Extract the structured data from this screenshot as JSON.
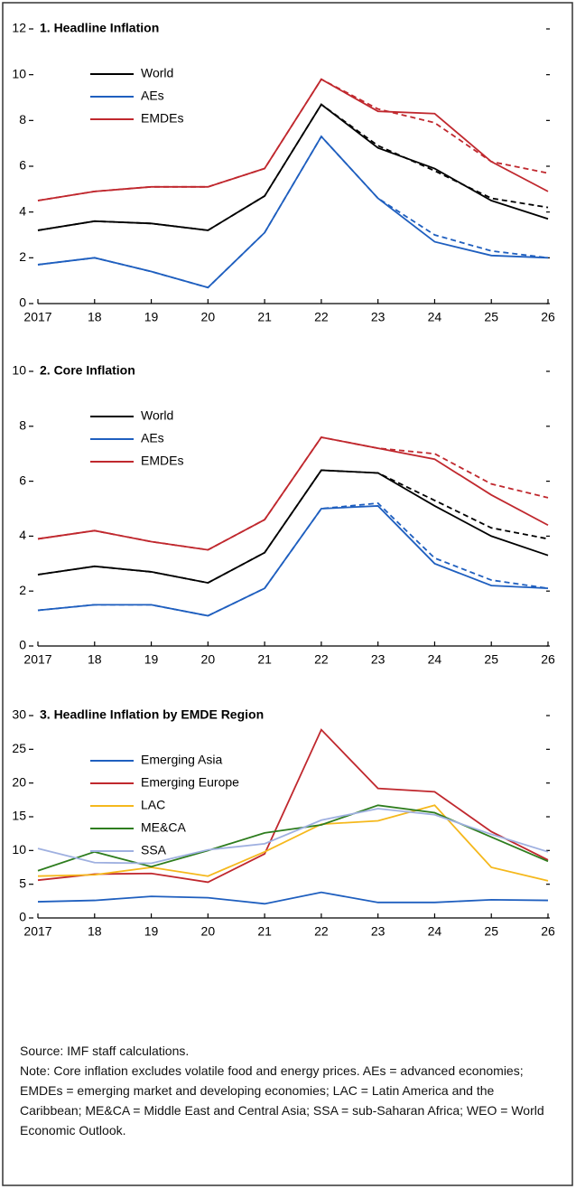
{
  "chart_data": [
    {
      "type": "line",
      "title": "1. Headline Inflation",
      "categories": [
        "2017",
        "18",
        "19",
        "20",
        "21",
        "22",
        "23",
        "24",
        "25",
        "26"
      ],
      "ylim": [
        0,
        12
      ],
      "yticks": [
        0,
        2,
        4,
        6,
        8,
        10,
        12
      ],
      "series": [
        {
          "name": "World",
          "color": "#000000",
          "values": [
            3.2,
            3.6,
            3.5,
            3.2,
            4.7,
            8.7,
            6.8,
            5.9,
            4.5,
            3.7
          ]
        },
        {
          "name": "AEs",
          "color": "#1f5fbf",
          "values": [
            1.7,
            2.0,
            1.4,
            0.7,
            3.1,
            7.3,
            4.6,
            2.7,
            2.1,
            2.0
          ]
        },
        {
          "name": "EMDEs",
          "color": "#c0282e",
          "values": [
            4.5,
            4.9,
            5.1,
            5.1,
            5.9,
            9.8,
            8.4,
            8.3,
            6.2,
            4.9
          ]
        },
        {
          "color": "#000000",
          "dashed": true,
          "values": [
            3.2,
            3.6,
            3.5,
            3.2,
            4.7,
            8.7,
            6.9,
            5.8,
            4.6,
            4.2
          ]
        },
        {
          "color": "#1f5fbf",
          "dashed": true,
          "values": [
            1.7,
            2.0,
            1.4,
            0.7,
            3.1,
            7.3,
            4.6,
            3.0,
            2.3,
            2.0
          ]
        },
        {
          "color": "#c0282e",
          "dashed": true,
          "values": [
            4.5,
            4.9,
            5.1,
            5.1,
            5.9,
            9.8,
            8.5,
            7.9,
            6.2,
            5.7
          ]
        }
      ]
    },
    {
      "type": "line",
      "title": "2. Core Inflation",
      "categories": [
        "2017",
        "18",
        "19",
        "20",
        "21",
        "22",
        "23",
        "24",
        "25",
        "26"
      ],
      "ylim": [
        0,
        10
      ],
      "yticks": [
        0,
        2,
        4,
        6,
        8,
        10
      ],
      "series": [
        {
          "name": "World",
          "color": "#000000",
          "values": [
            2.6,
            2.9,
            2.7,
            2.3,
            3.4,
            6.4,
            6.3,
            5.1,
            4.0,
            3.3
          ]
        },
        {
          "name": "AEs",
          "color": "#1f5fbf",
          "values": [
            1.3,
            1.5,
            1.5,
            1.1,
            2.1,
            5.0,
            5.1,
            3.0,
            2.2,
            2.1
          ]
        },
        {
          "name": "EMDEs",
          "color": "#c0282e",
          "values": [
            3.9,
            4.2,
            3.8,
            3.5,
            4.6,
            7.6,
            7.2,
            6.8,
            5.5,
            4.4
          ]
        },
        {
          "color": "#000000",
          "dashed": true,
          "values": [
            2.6,
            2.9,
            2.7,
            2.3,
            3.4,
            6.4,
            6.3,
            5.3,
            4.3,
            3.9
          ]
        },
        {
          "color": "#1f5fbf",
          "dashed": true,
          "values": [
            1.3,
            1.5,
            1.5,
            1.1,
            2.1,
            5.0,
            5.2,
            3.2,
            2.4,
            2.1
          ]
        },
        {
          "color": "#c0282e",
          "dashed": true,
          "values": [
            3.9,
            4.2,
            3.8,
            3.5,
            4.6,
            7.6,
            7.2,
            7.0,
            5.9,
            5.4
          ]
        }
      ]
    },
    {
      "type": "line",
      "title": "3. Headline Inflation by EMDE Region",
      "categories": [
        "2017",
        "18",
        "19",
        "20",
        "21",
        "22",
        "23",
        "24",
        "25",
        "26"
      ],
      "ylim": [
        0,
        30
      ],
      "yticks": [
        0,
        5,
        10,
        15,
        20,
        25,
        30
      ],
      "series": [
        {
          "name": "Emerging Asia",
          "color": "#1f5fbf",
          "values": [
            2.4,
            2.6,
            3.2,
            3.0,
            2.1,
            3.8,
            2.3,
            2.3,
            2.7,
            2.6
          ]
        },
        {
          "name": "Emerging Europe",
          "color": "#c0282e",
          "values": [
            5.6,
            6.5,
            6.6,
            5.3,
            9.5,
            27.9,
            19.2,
            18.7,
            12.8,
            8.6
          ]
        },
        {
          "name": "LAC",
          "color": "#f5b81c",
          "values": [
            6.2,
            6.4,
            7.5,
            6.2,
            9.8,
            13.9,
            14.4,
            16.7,
            7.5,
            5.5
          ]
        },
        {
          "name": "ME&CA",
          "color": "#2e7d1e",
          "values": [
            7.0,
            9.8,
            7.6,
            10.0,
            12.6,
            13.8,
            16.7,
            15.6,
            12.0,
            8.4
          ]
        },
        {
          "name": "SSA",
          "color": "#9fb0e0",
          "values": [
            10.3,
            8.2,
            8.1,
            10.1,
            11.0,
            14.5,
            16.2,
            15.3,
            12.4,
            9.8
          ]
        }
      ]
    }
  ],
  "source": "Source: IMF staff calculations.",
  "note": "Note: Core inflation excludes volatile food and energy prices. AEs = advanced economies; EMDEs = emerging market and developing economies; LAC = Latin America and the Caribbean; ME&CA = Middle East and Central Asia; SSA = sub-Saharan Africa; WEO = World Economic Outlook."
}
